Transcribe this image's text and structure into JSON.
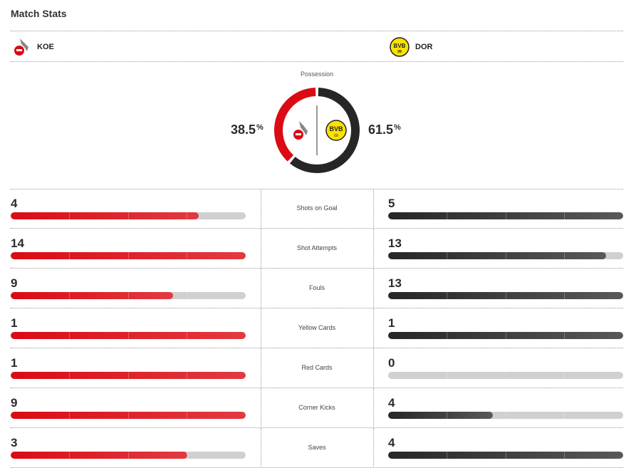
{
  "title": "Match Stats",
  "home": {
    "abbr": "KOE",
    "color": "#db0a14",
    "logo": "koeln-crest-icon"
  },
  "away": {
    "abbr": "DOR",
    "color": "#262626",
    "logo": "bvb-crest-icon",
    "logo_text": "BVB 09"
  },
  "possession": {
    "label": "Possession",
    "home": "38.5",
    "away": "61.5",
    "unit": "%",
    "home_value": 38.5,
    "away_value": 61.5
  },
  "stats": [
    {
      "label": "Shots on Goal",
      "home": "4",
      "away": "5",
      "hv": 4,
      "av": 5
    },
    {
      "label": "Shot Attempts",
      "home": "14",
      "away": "13",
      "hv": 14,
      "av": 13
    },
    {
      "label": "Fouls",
      "home": "9",
      "away": "13",
      "hv": 9,
      "av": 13
    },
    {
      "label": "Yellow Cards",
      "home": "1",
      "away": "1",
      "hv": 1,
      "av": 1
    },
    {
      "label": "Red Cards",
      "home": "1",
      "away": "0",
      "hv": 1,
      "av": 0
    },
    {
      "label": "Corner Kicks",
      "home": "9",
      "away": "4",
      "hv": 9,
      "av": 4
    },
    {
      "label": "Saves",
      "home": "3",
      "away": "4",
      "hv": 3,
      "av": 4
    }
  ]
}
